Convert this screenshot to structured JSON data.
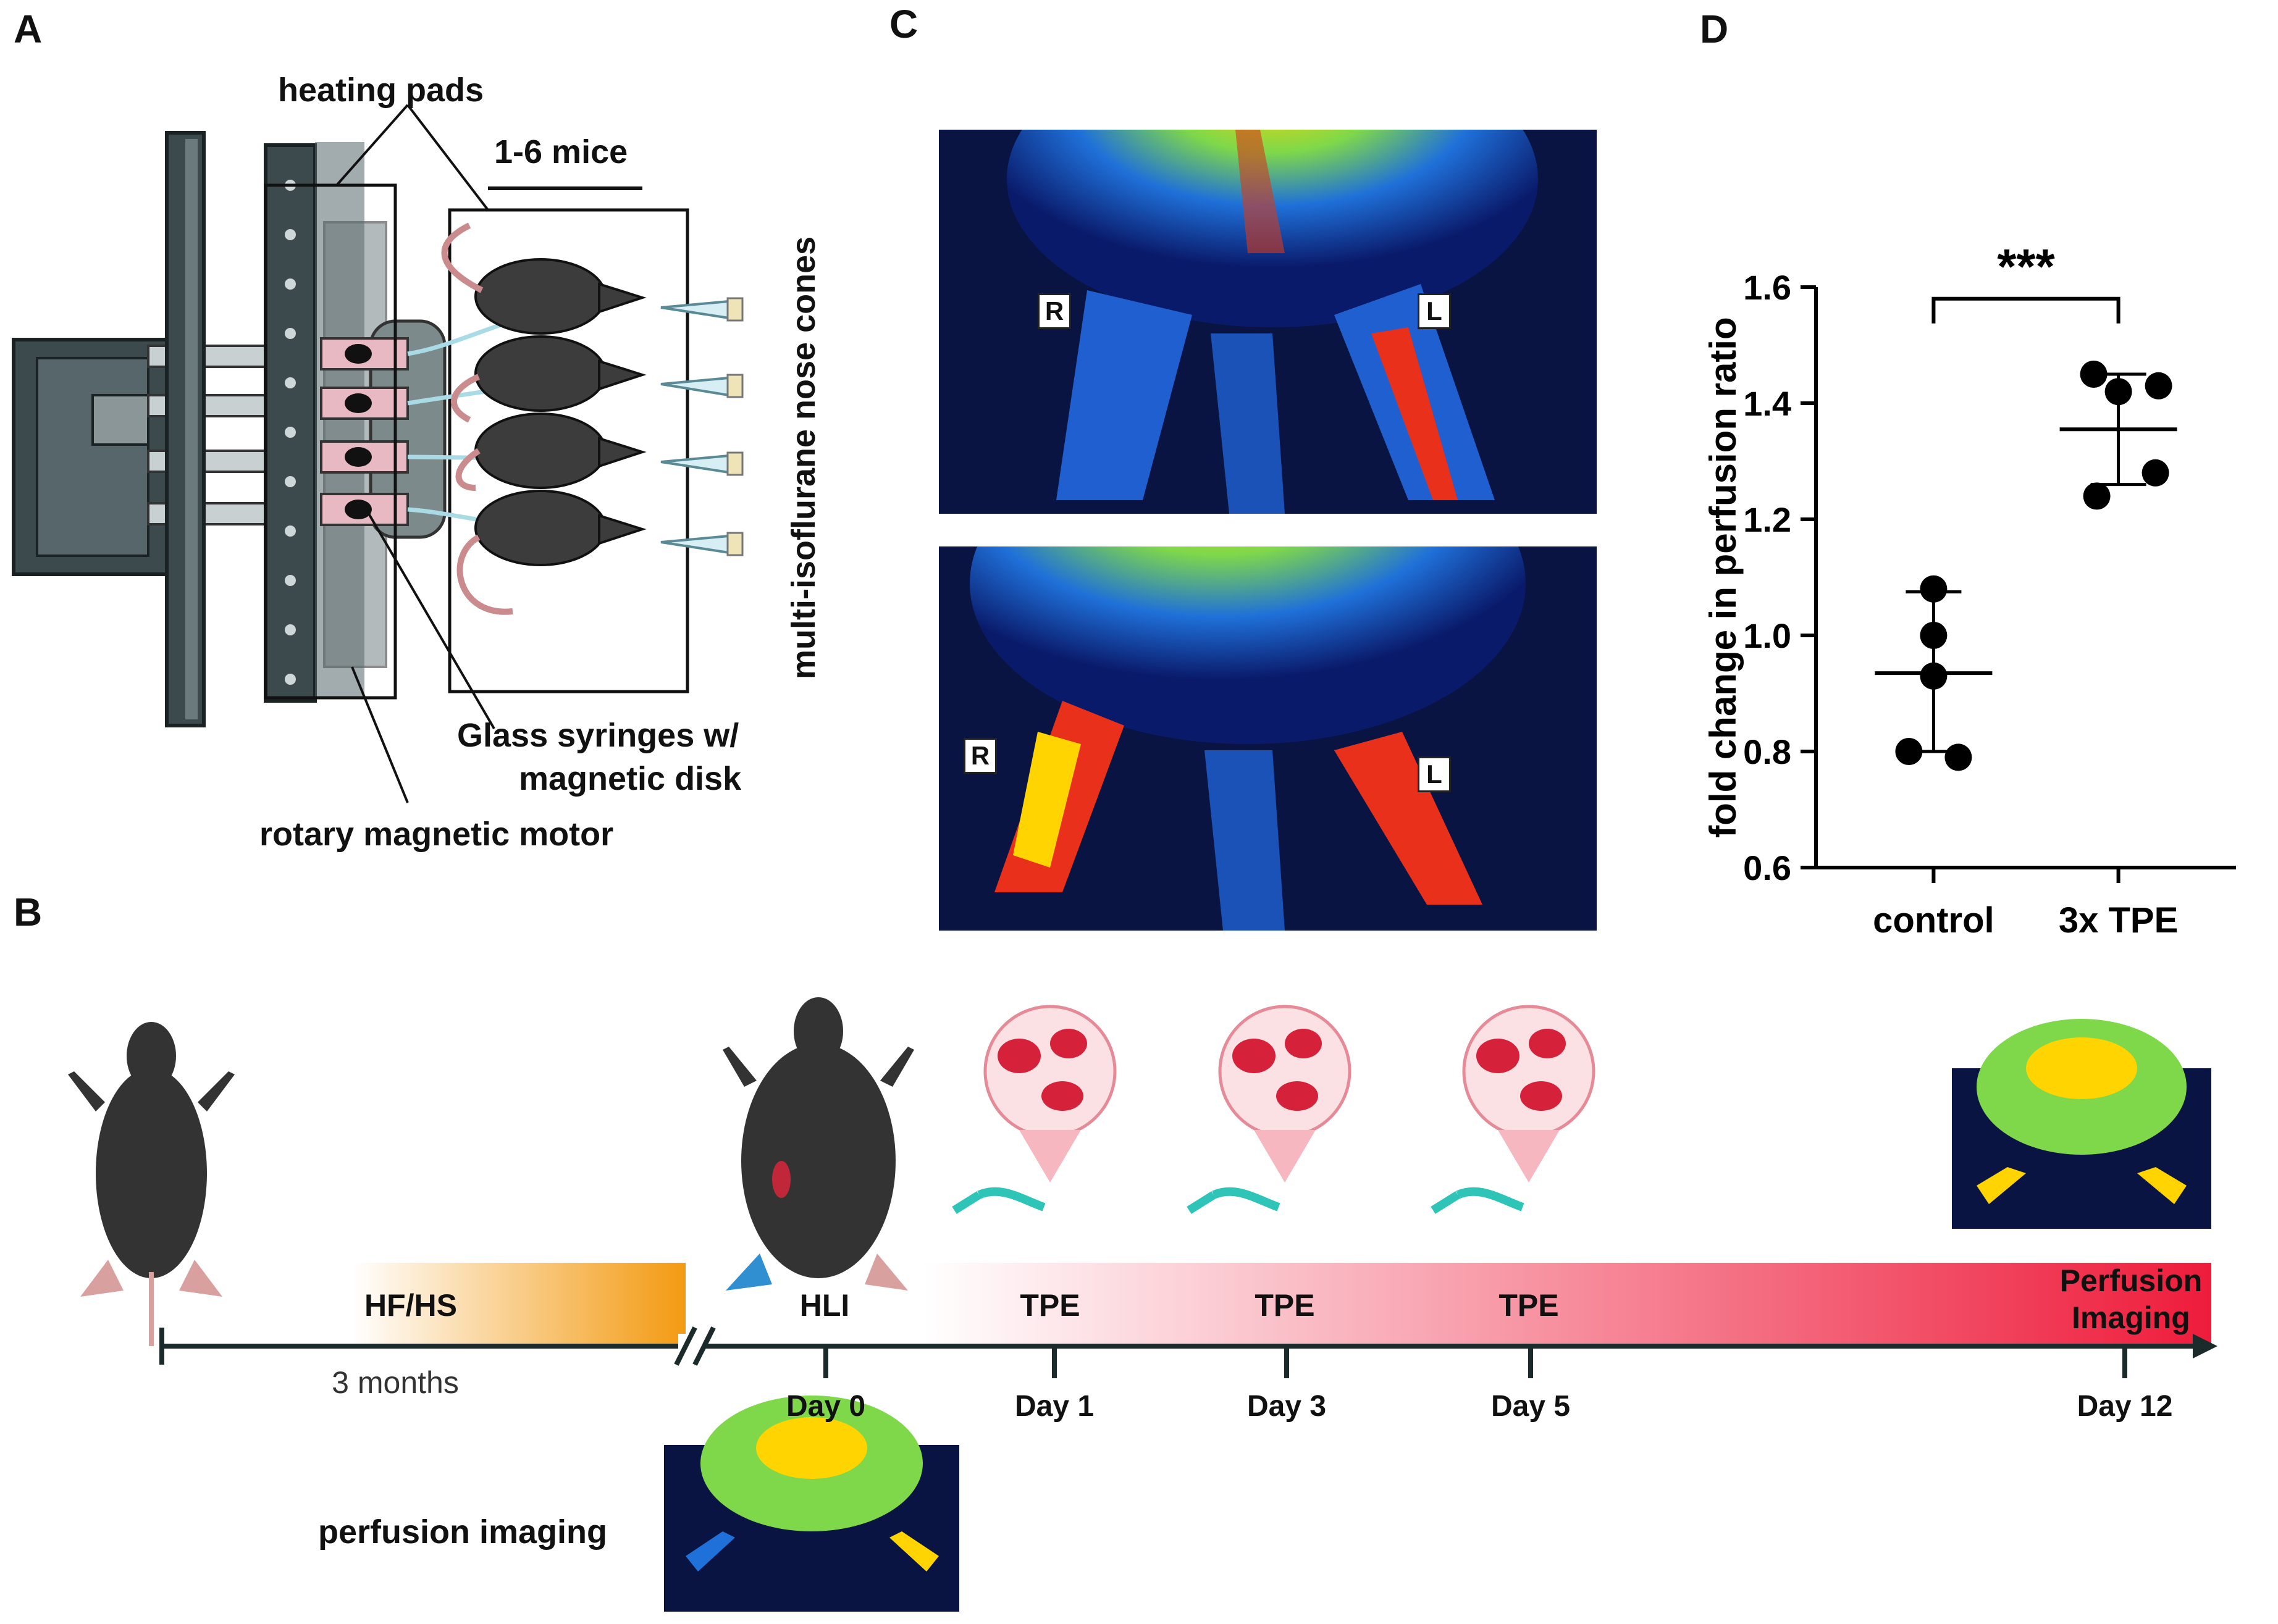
{
  "panels": {
    "a": "A",
    "b": "B",
    "c": "C",
    "d": "D"
  },
  "panel_a": {
    "heating_pads": "heating pads",
    "mice_count": "1-6 mice",
    "nose_cones": "multi-isoflurane nose cones",
    "syringes_line1": "Glass syringes w/",
    "syringes_line2": "magnetic disk",
    "motor": "rotary magnetic motor"
  },
  "panel_b": {
    "diet": "HF/HS",
    "diet_duration": "3 months",
    "surgery": "HLI",
    "treatment_labels": [
      "TPE",
      "TPE",
      "TPE"
    ],
    "final_line1": "Perfusion",
    "final_line2": "Imaging",
    "days": [
      "Day 0",
      "Day 1",
      "Day 3",
      "Day 5",
      "Day 12"
    ],
    "baseline_label": "perfusion imaging"
  },
  "panel_c": {
    "right_label": "R",
    "left_label": "L"
  },
  "chart_data": {
    "type": "scatter",
    "title": "",
    "xlabel": "",
    "ylabel": "fold change in perfusion ratio",
    "categories": [
      "control",
      "3x TPE"
    ],
    "ylim": [
      0.6,
      1.6
    ],
    "yticks": [
      "0.6",
      "0.8",
      "1.0",
      "1.2",
      "1.4",
      "1.6"
    ],
    "series": [
      {
        "category": "control",
        "values": [
          1.08,
          1.0,
          0.93,
          0.8,
          0.79
        ],
        "mean": 0.935,
        "sd_upper": 1.075,
        "sd_lower": 0.8
      },
      {
        "category": "3x TPE",
        "values": [
          1.45,
          1.43,
          1.42,
          1.28,
          1.24
        ],
        "mean": 1.355,
        "sd_upper": 1.45,
        "sd_lower": 1.26
      }
    ],
    "significance": "***",
    "colors": {
      "points": "#000000",
      "axis": "#000000"
    }
  }
}
